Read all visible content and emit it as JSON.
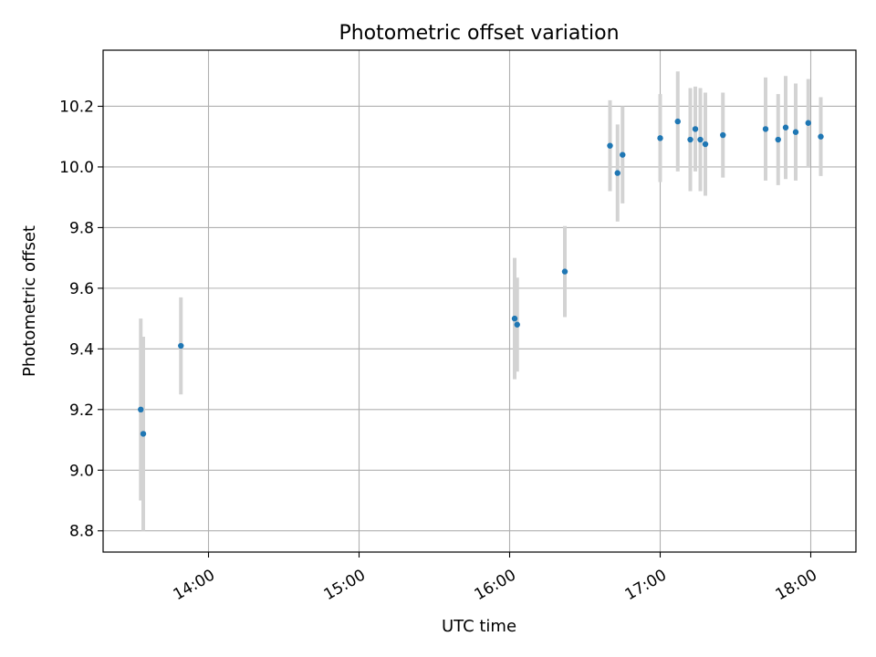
{
  "chart_data": {
    "type": "scatter",
    "title": "Photometric offset variation",
    "xlabel": "UTC time",
    "ylabel": "Photometric offset",
    "grid": true,
    "xlim": [
      "13:18",
      "18:18"
    ],
    "ylim": [
      8.73,
      10.385
    ],
    "xticks": [
      "14:00",
      "15:00",
      "16:00",
      "17:00",
      "18:00"
    ],
    "yticks": [
      8.8,
      9.0,
      9.2,
      9.4,
      9.6,
      9.8,
      10.0,
      10.2
    ],
    "colors": {
      "points": "#1f77b4",
      "errorbars": "#d3d3d3",
      "grid": "#b0b0b0"
    },
    "points": [
      {
        "t": "13:33",
        "y": 9.2,
        "yerr": 0.3
      },
      {
        "t": "13:34",
        "y": 9.12,
        "yerr": 0.32
      },
      {
        "t": "13:49",
        "y": 9.41,
        "yerr": 0.16
      },
      {
        "t": "16:02",
        "y": 9.5,
        "yerr": 0.2
      },
      {
        "t": "16:03",
        "y": 9.48,
        "yerr": 0.155
      },
      {
        "t": "16:22",
        "y": 9.655,
        "yerr": 0.15
      },
      {
        "t": "16:40",
        "y": 10.07,
        "yerr": 0.15
      },
      {
        "t": "16:43",
        "y": 9.98,
        "yerr": 0.16
      },
      {
        "t": "16:45",
        "y": 10.04,
        "yerr": 0.16
      },
      {
        "t": "17:00",
        "y": 10.095,
        "yerr": 0.145
      },
      {
        "t": "17:07",
        "y": 10.15,
        "yerr": 0.165
      },
      {
        "t": "17:12",
        "y": 10.09,
        "yerr": 0.17
      },
      {
        "t": "17:14",
        "y": 10.125,
        "yerr": 0.14
      },
      {
        "t": "17:16",
        "y": 10.09,
        "yerr": 0.17
      },
      {
        "t": "17:18",
        "y": 10.075,
        "yerr": 0.17
      },
      {
        "t": "17:25",
        "y": 10.105,
        "yerr": 0.14
      },
      {
        "t": "17:42",
        "y": 10.125,
        "yerr": 0.17
      },
      {
        "t": "17:47",
        "y": 10.09,
        "yerr": 0.15
      },
      {
        "t": "17:50",
        "y": 10.13,
        "yerr": 0.17
      },
      {
        "t": "17:54",
        "y": 10.115,
        "yerr": 0.16
      },
      {
        "t": "17:59",
        "y": 10.145,
        "yerr": 0.145
      },
      {
        "t": "18:04",
        "y": 10.1,
        "yerr": 0.13
      }
    ]
  }
}
